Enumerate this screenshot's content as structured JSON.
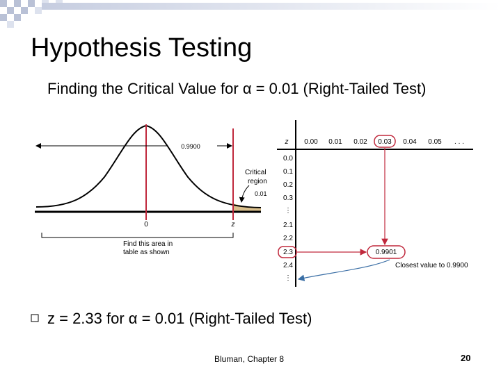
{
  "slide": {
    "title": "Hypothesis Testing",
    "subtitle": "Finding the Critical Value for α = 0.01 (Right-Tailed Test)",
    "result": "z = 2.33 for α = 0.01 (Right-Tailed Test)",
    "footer": "Bluman, Chapter 8",
    "page_number": "20"
  },
  "figure": {
    "curve_area_label": "0.9900",
    "critical_label_1": "Critical",
    "critical_label_2": "region",
    "alpha_label": "0.01",
    "zero_label": "0",
    "z_axis_label": "z",
    "find_label_1": "Find this area in",
    "find_label_2": "table as shown",
    "table_z_header": "z",
    "col_headers": [
      "0.00",
      "0.01",
      "0.02",
      "0.03",
      "0.04",
      "0.05",
      ". . ."
    ],
    "row_labels": [
      "0.0",
      "0.1",
      "0.2",
      "0.3",
      "⋮",
      "2.1",
      "2.2",
      "2.3",
      "2.4",
      "⋮"
    ],
    "table_value": "0.9901",
    "closest_label": "Closest value to 0.9900"
  },
  "colors": {
    "accent_red": "#c0283c",
    "arrow_blue": "#3a6ea5",
    "tail_fill": "#d9bf8c"
  }
}
